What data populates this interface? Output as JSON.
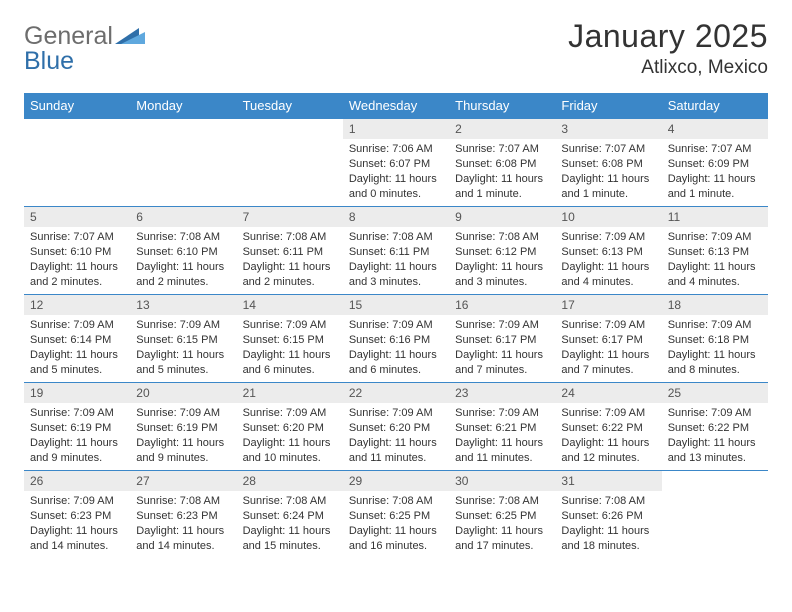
{
  "colors": {
    "header_bg": "#3b87c8",
    "header_text": "#ffffff",
    "row_border": "#3b87c8",
    "daynum_bg": "#ececec",
    "daynum_text": "#555555",
    "body_text": "#333333",
    "logo_gray": "#6d6d6d",
    "logo_blue": "#2f6fa9",
    "page_bg": "#ffffff"
  },
  "typography": {
    "font_family": "Arial, Helvetica, sans-serif",
    "title_size_pt": 24,
    "location_size_pt": 14,
    "header_size_pt": 10,
    "daynum_size_pt": 9,
    "body_size_pt": 8
  },
  "logo": {
    "text_gray": "General",
    "text_blue": "Blue"
  },
  "title": "January 2025",
  "location": "Atlixco, Mexico",
  "weekdays": [
    "Sunday",
    "Monday",
    "Tuesday",
    "Wednesday",
    "Thursday",
    "Friday",
    "Saturday"
  ],
  "labels": {
    "sunrise": "Sunrise:",
    "sunset": "Sunset:",
    "daylight": "Daylight:"
  },
  "weeks": [
    [
      null,
      null,
      null,
      {
        "n": "1",
        "sr": "7:06 AM",
        "ss": "6:07 PM",
        "dl": "11 hours and 0 minutes."
      },
      {
        "n": "2",
        "sr": "7:07 AM",
        "ss": "6:08 PM",
        "dl": "11 hours and 1 minute."
      },
      {
        "n": "3",
        "sr": "7:07 AM",
        "ss": "6:08 PM",
        "dl": "11 hours and 1 minute."
      },
      {
        "n": "4",
        "sr": "7:07 AM",
        "ss": "6:09 PM",
        "dl": "11 hours and 1 minute."
      }
    ],
    [
      {
        "n": "5",
        "sr": "7:07 AM",
        "ss": "6:10 PM",
        "dl": "11 hours and 2 minutes."
      },
      {
        "n": "6",
        "sr": "7:08 AM",
        "ss": "6:10 PM",
        "dl": "11 hours and 2 minutes."
      },
      {
        "n": "7",
        "sr": "7:08 AM",
        "ss": "6:11 PM",
        "dl": "11 hours and 2 minutes."
      },
      {
        "n": "8",
        "sr": "7:08 AM",
        "ss": "6:11 PM",
        "dl": "11 hours and 3 minutes."
      },
      {
        "n": "9",
        "sr": "7:08 AM",
        "ss": "6:12 PM",
        "dl": "11 hours and 3 minutes."
      },
      {
        "n": "10",
        "sr": "7:09 AM",
        "ss": "6:13 PM",
        "dl": "11 hours and 4 minutes."
      },
      {
        "n": "11",
        "sr": "7:09 AM",
        "ss": "6:13 PM",
        "dl": "11 hours and 4 minutes."
      }
    ],
    [
      {
        "n": "12",
        "sr": "7:09 AM",
        "ss": "6:14 PM",
        "dl": "11 hours and 5 minutes."
      },
      {
        "n": "13",
        "sr": "7:09 AM",
        "ss": "6:15 PM",
        "dl": "11 hours and 5 minutes."
      },
      {
        "n": "14",
        "sr": "7:09 AM",
        "ss": "6:15 PM",
        "dl": "11 hours and 6 minutes."
      },
      {
        "n": "15",
        "sr": "7:09 AM",
        "ss": "6:16 PM",
        "dl": "11 hours and 6 minutes."
      },
      {
        "n": "16",
        "sr": "7:09 AM",
        "ss": "6:17 PM",
        "dl": "11 hours and 7 minutes."
      },
      {
        "n": "17",
        "sr": "7:09 AM",
        "ss": "6:17 PM",
        "dl": "11 hours and 7 minutes."
      },
      {
        "n": "18",
        "sr": "7:09 AM",
        "ss": "6:18 PM",
        "dl": "11 hours and 8 minutes."
      }
    ],
    [
      {
        "n": "19",
        "sr": "7:09 AM",
        "ss": "6:19 PM",
        "dl": "11 hours and 9 minutes."
      },
      {
        "n": "20",
        "sr": "7:09 AM",
        "ss": "6:19 PM",
        "dl": "11 hours and 9 minutes."
      },
      {
        "n": "21",
        "sr": "7:09 AM",
        "ss": "6:20 PM",
        "dl": "11 hours and 10 minutes."
      },
      {
        "n": "22",
        "sr": "7:09 AM",
        "ss": "6:20 PM",
        "dl": "11 hours and 11 minutes."
      },
      {
        "n": "23",
        "sr": "7:09 AM",
        "ss": "6:21 PM",
        "dl": "11 hours and 11 minutes."
      },
      {
        "n": "24",
        "sr": "7:09 AM",
        "ss": "6:22 PM",
        "dl": "11 hours and 12 minutes."
      },
      {
        "n": "25",
        "sr": "7:09 AM",
        "ss": "6:22 PM",
        "dl": "11 hours and 13 minutes."
      }
    ],
    [
      {
        "n": "26",
        "sr": "7:09 AM",
        "ss": "6:23 PM",
        "dl": "11 hours and 14 minutes."
      },
      {
        "n": "27",
        "sr": "7:08 AM",
        "ss": "6:23 PM",
        "dl": "11 hours and 14 minutes."
      },
      {
        "n": "28",
        "sr": "7:08 AM",
        "ss": "6:24 PM",
        "dl": "11 hours and 15 minutes."
      },
      {
        "n": "29",
        "sr": "7:08 AM",
        "ss": "6:25 PM",
        "dl": "11 hours and 16 minutes."
      },
      {
        "n": "30",
        "sr": "7:08 AM",
        "ss": "6:25 PM",
        "dl": "11 hours and 17 minutes."
      },
      {
        "n": "31",
        "sr": "7:08 AM",
        "ss": "6:26 PM",
        "dl": "11 hours and 18 minutes."
      },
      null
    ]
  ]
}
